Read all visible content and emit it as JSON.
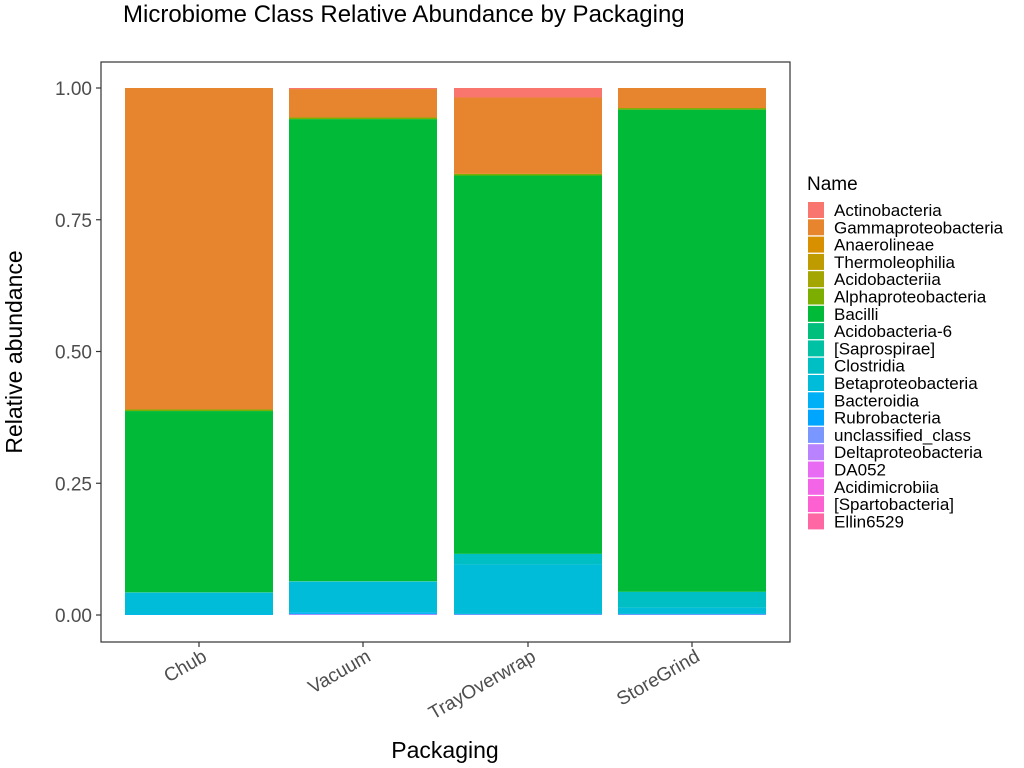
{
  "chart_data": {
    "type": "bar",
    "stacked": true,
    "title": "Microbiome Class Relative Abundance by Packaging",
    "xlabel": "Packaging",
    "ylabel": "Relative abundance",
    "ylim": [
      0,
      1
    ],
    "y_ticks": [
      "0.00",
      "0.25",
      "0.50",
      "0.75",
      "1.00"
    ],
    "y_tick_values": [
      0,
      0.25,
      0.5,
      0.75,
      1.0
    ],
    "grid": false,
    "legend_title": "Name",
    "legend_position": "right",
    "categories": [
      "Chub",
      "Vacuum",
      "TrayOverwrap",
      "StoreGrind"
    ],
    "series": [
      {
        "name": "Actinobacteria",
        "color": "#F8766D",
        "values": [
          0.0,
          0.002,
          0.018,
          0.0
        ]
      },
      {
        "name": "Gammaproteobacteria",
        "color": "#E7852E",
        "values": [
          0.61,
          0.054,
          0.145,
          0.038
        ]
      },
      {
        "name": "Anaerolineae",
        "color": "#D89000",
        "values": [
          0.0,
          0.0,
          0.0,
          0.0
        ]
      },
      {
        "name": "Thermoleophilia",
        "color": "#C09B00",
        "values": [
          0.0,
          0.0,
          0.0,
          0.0
        ]
      },
      {
        "name": "Acidobacteriia",
        "color": "#A3A500",
        "values": [
          0.0,
          0.0,
          0.0,
          0.0
        ]
      },
      {
        "name": "Alphaproteobacteria",
        "color": "#7CAE00",
        "values": [
          0.003,
          0.003,
          0.003,
          0.003
        ]
      },
      {
        "name": "Bacilli",
        "color": "#00BA38",
        "values": [
          0.344,
          0.877,
          0.718,
          0.915
        ]
      },
      {
        "name": "Acidobacteria-6",
        "color": "#00BF7D",
        "values": [
          0.0,
          0.0,
          0.0,
          0.0
        ]
      },
      {
        "name": "[Saprospirae]",
        "color": "#00C1A3",
        "values": [
          0.0,
          0.0,
          0.0,
          0.0
        ]
      },
      {
        "name": "Clostridia",
        "color": "#00BFC4",
        "values": [
          0.001,
          0.001,
          0.02,
          0.03
        ]
      },
      {
        "name": "Betaproteobacteria",
        "color": "#00BCD8",
        "values": [
          0.041,
          0.058,
          0.094,
          0.012
        ]
      },
      {
        "name": "Bacteroidia",
        "color": "#00B0F6",
        "values": [
          0.001,
          0.003,
          0.001,
          0.001
        ]
      },
      {
        "name": "Rubrobacteria",
        "color": "#00A5FF",
        "values": [
          0.0,
          0.0,
          0.0,
          0.0
        ]
      },
      {
        "name": "unclassified_class",
        "color": "#7997FF",
        "values": [
          0.0,
          0.001,
          0.0,
          0.0
        ]
      },
      {
        "name": "Deltaproteobacteria",
        "color": "#B983FF",
        "values": [
          0.0,
          0.001,
          0.001,
          0.001
        ]
      },
      {
        "name": "DA052",
        "color": "#E76BF3",
        "values": [
          0.0,
          0.0,
          0.0,
          0.0
        ]
      },
      {
        "name": "Acidimicrobiia",
        "color": "#F265E7",
        "values": [
          0.0,
          0.0,
          0.0,
          0.0
        ]
      },
      {
        "name": "[Spartobacteria]",
        "color": "#FD61D1",
        "values": [
          0.0,
          0.0,
          0.0,
          0.0
        ]
      },
      {
        "name": "Ellin6529",
        "color": "#FF67A4",
        "values": [
          0.0,
          0.0,
          0.0,
          0.0
        ]
      }
    ]
  }
}
